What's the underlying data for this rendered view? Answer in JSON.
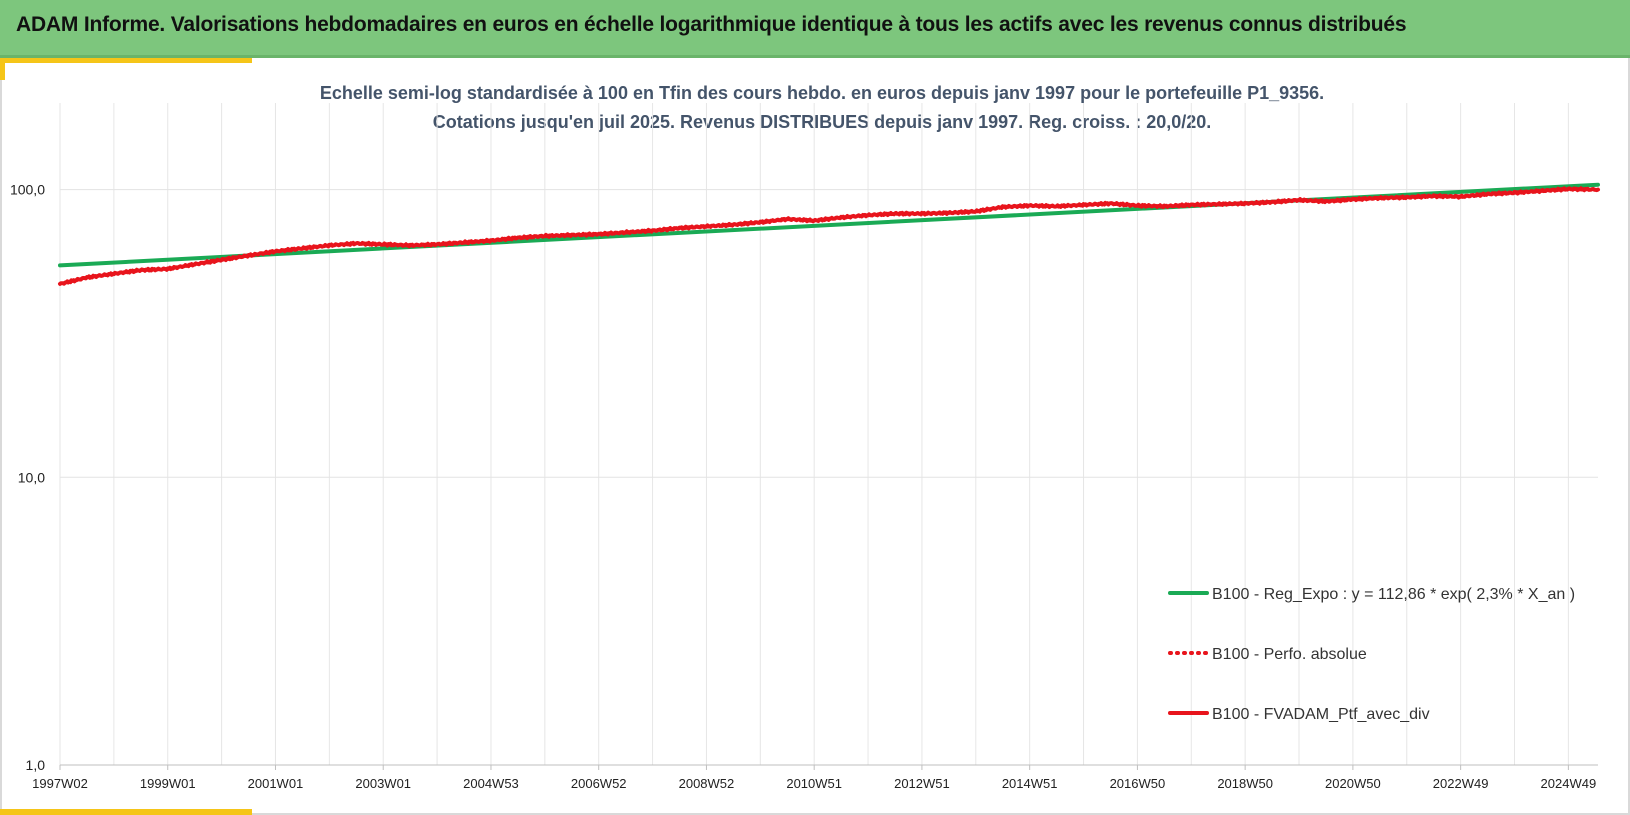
{
  "header": {
    "title": "ADAM Informe. Valorisations hebdomadaires en euros en échelle logarithmique identique à tous les actifs avec les revenus connus distribués"
  },
  "colors": {
    "banner": "#7dc67d",
    "accent": "#f5c518",
    "regression": "#1aaa55",
    "portfolio": "#e8141c",
    "subtitle_text": "#44546a"
  },
  "chart_data": {
    "type": "line",
    "title_line1": "Echelle semi-log standardisée  à 100 en Tfin des cours hebdo.  en euros depuis janv 1997 pour  le portefeuille P1_9356.",
    "title_line2": "Cotations jusqu'en juil 2025. Revenus DISTRIBUES depuis janv 1997. Reg. croiss. : 20,0/20.",
    "y_scale": "log",
    "ylim": [
      1,
      200
    ],
    "y_ticks": [
      {
        "value": 1,
        "label": "1,0"
      },
      {
        "value": 10,
        "label": "10,0"
      },
      {
        "value": 100,
        "label": "100,0"
      }
    ],
    "x_range": [
      1997.0,
      2025.55
    ],
    "x_ticks": [
      {
        "value": 1997.0,
        "label": "1997W02"
      },
      {
        "value": 1999.0,
        "label": "1999W01"
      },
      {
        "value": 2001.0,
        "label": "2001W01"
      },
      {
        "value": 2003.0,
        "label": "2003W01"
      },
      {
        "value": 2005.0,
        "label": "2004W53"
      },
      {
        "value": 2007.0,
        "label": "2006W52"
      },
      {
        "value": 2009.0,
        "label": "2008W52"
      },
      {
        "value": 2011.0,
        "label": "2010W51"
      },
      {
        "value": 2013.0,
        "label": "2012W51"
      },
      {
        "value": 2015.0,
        "label": "2014W51"
      },
      {
        "value": 2017.0,
        "label": "2016W50"
      },
      {
        "value": 2019.0,
        "label": "2018W50"
      },
      {
        "value": 2021.0,
        "label": "2020W50"
      },
      {
        "value": 2023.0,
        "label": "2022W49"
      },
      {
        "value": 2025.0,
        "label": "2024W49"
      }
    ],
    "grid": true,
    "legend_position": "bottom-right",
    "series": [
      {
        "name": "B100 - Reg_Expo : y = 112,86 * exp( 2,3% *  X_an )",
        "style": "solid",
        "color": "#1aaa55",
        "x": [
          1997.0,
          2025.55
        ],
        "y": [
          54.5,
          104.0
        ]
      },
      {
        "name": "B100 - Perfo. absolue",
        "style": "dotted",
        "color": "#e8141c",
        "x": [],
        "y": []
      },
      {
        "name": "B100 - FVADAM_Ptf_avec_div",
        "style": "solid",
        "color": "#e8141c",
        "x": [
          1997.0,
          1997.5,
          1998.0,
          1998.5,
          1999.0,
          1999.5,
          2000.0,
          2000.5,
          2001.0,
          2001.5,
          2002.0,
          2002.5,
          2003.0,
          2003.5,
          2004.0,
          2004.5,
          2005.0,
          2005.5,
          2006.0,
          2006.5,
          2007.0,
          2007.5,
          2008.0,
          2008.5,
          2009.0,
          2009.5,
          2010.0,
          2010.5,
          2011.0,
          2011.5,
          2012.0,
          2012.5,
          2013.0,
          2013.5,
          2014.0,
          2014.5,
          2015.0,
          2015.5,
          2016.0,
          2016.5,
          2017.0,
          2017.5,
          2018.0,
          2018.5,
          2019.0,
          2019.5,
          2020.0,
          2020.5,
          2021.0,
          2021.5,
          2022.0,
          2022.5,
          2023.0,
          2023.5,
          2024.0,
          2024.5,
          2025.0,
          2025.55
        ],
        "y": [
          47.0,
          49.5,
          51.0,
          52.5,
          53.0,
          55.0,
          57.0,
          59.0,
          61.0,
          62.5,
          64.0,
          65.0,
          64.5,
          64.0,
          64.5,
          65.5,
          66.5,
          68.0,
          69.0,
          69.5,
          70.0,
          71.0,
          72.0,
          73.5,
          74.5,
          75.5,
          77.0,
          79.0,
          78.0,
          80.0,
          81.5,
          82.5,
          82.5,
          83.0,
          84.0,
          87.0,
          88.0,
          87.5,
          88.5,
          89.5,
          88.0,
          87.5,
          88.5,
          89.0,
          89.5,
          90.5,
          92.0,
          91.0,
          92.5,
          93.5,
          94.0,
          95.0,
          94.5,
          96.5,
          97.5,
          99.0,
          100.5,
          100.0
        ]
      }
    ]
  }
}
